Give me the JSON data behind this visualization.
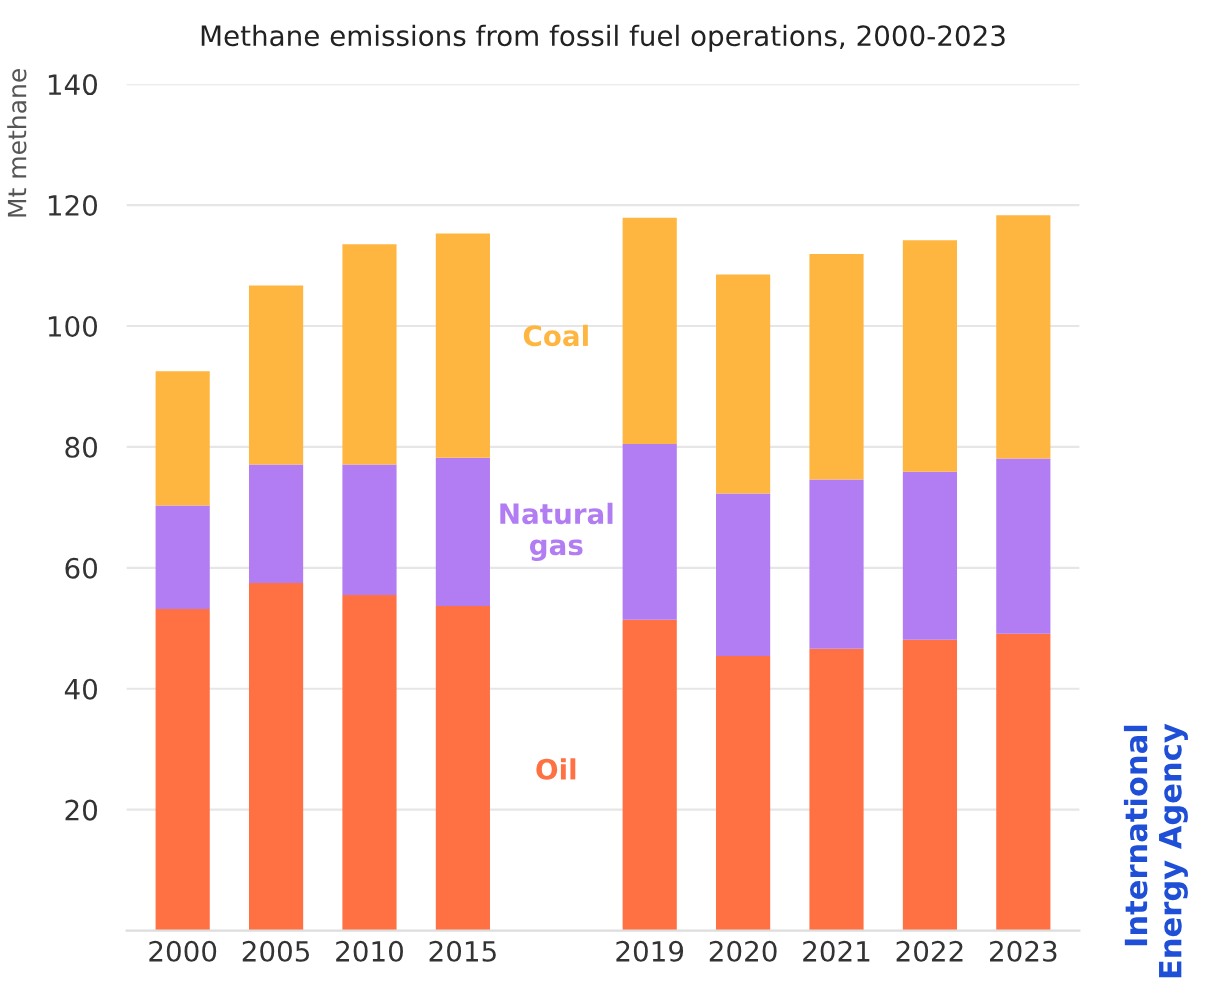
{
  "chart_data": {
    "type": "bar",
    "stacked": true,
    "title": "Methane emissions from fossil fuel operations, 2000-2023",
    "ylabel": "Mt methane",
    "categories": [
      "2000",
      "2005",
      "2010",
      "2015",
      null,
      "2019",
      "2020",
      "2021",
      "2022",
      "2023"
    ],
    "series": [
      {
        "name": "Oil",
        "color": "#ff7043",
        "values": [
          53.2,
          57.5,
          55.5,
          53.7,
          null,
          51.4,
          45.4,
          46.6,
          48.1,
          49.1
        ]
      },
      {
        "name": "Natural gas",
        "color": "#b27cf2",
        "values": [
          17.1,
          19.6,
          21.6,
          24.5,
          null,
          29.1,
          26.9,
          28.0,
          27.8,
          29.0
        ]
      },
      {
        "name": "Coal",
        "color": "#ffb640",
        "values": [
          22.2,
          29.6,
          36.4,
          37.1,
          null,
          37.4,
          36.2,
          37.3,
          38.3,
          40.2
        ]
      }
    ],
    "ylim": [
      0,
      140
    ],
    "yticks": [
      20,
      40,
      60,
      80,
      100,
      120,
      140
    ],
    "grid": "y",
    "legend": false,
    "annotations": [
      "International\nEnergy Agency"
    ]
  }
}
